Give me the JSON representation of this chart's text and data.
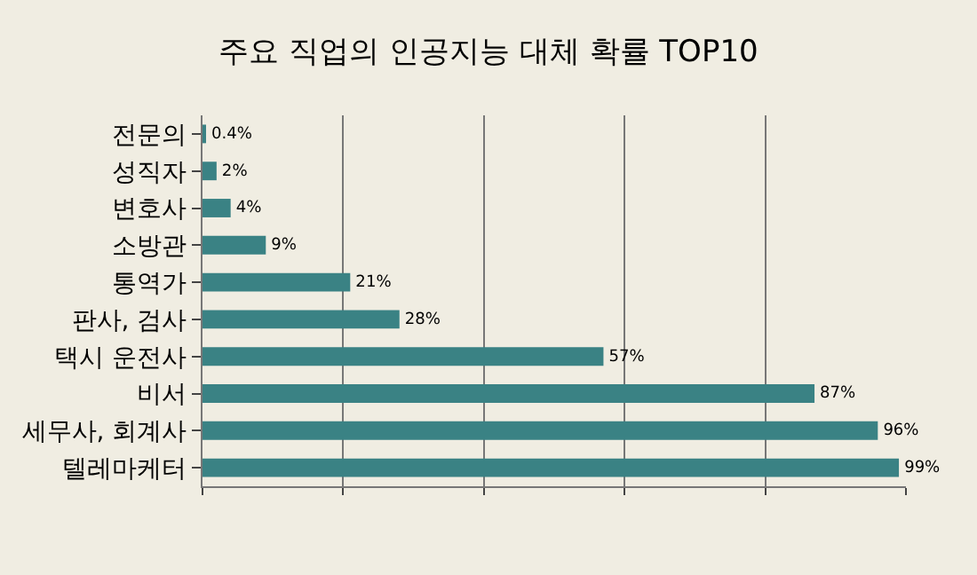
{
  "chart_data": {
    "type": "bar",
    "orientation": "horizontal",
    "title": "주요 직업의 인공지능 대체 확률 TOP10",
    "categories": [
      "전문의",
      "성직자",
      "변호사",
      "소방관",
      "통역가",
      "판사, 검사",
      "택시 운전사",
      "비서",
      "세무사, 회계사",
      "텔레마케터"
    ],
    "values": [
      0.4,
      2,
      4,
      9,
      21,
      28,
      57,
      87,
      96,
      99
    ],
    "value_labels": [
      "0.4%",
      "2%",
      "4%",
      "9%",
      "21%",
      "28%",
      "57%",
      "87%",
      "96%",
      "99%"
    ],
    "color": "#3a8284",
    "xlim": [
      0,
      100
    ],
    "xticks": [
      {
        "value": 0,
        "label": null
      },
      {
        "value": 20,
        "label": null
      },
      {
        "value": 40,
        "label": null
      },
      {
        "value": 60,
        "label": null
      },
      {
        "value": 80,
        "label": null
      },
      {
        "value": 100,
        "label": null
      }
    ],
    "tick_labels": "y",
    "grid": "x",
    "legend": false
  }
}
